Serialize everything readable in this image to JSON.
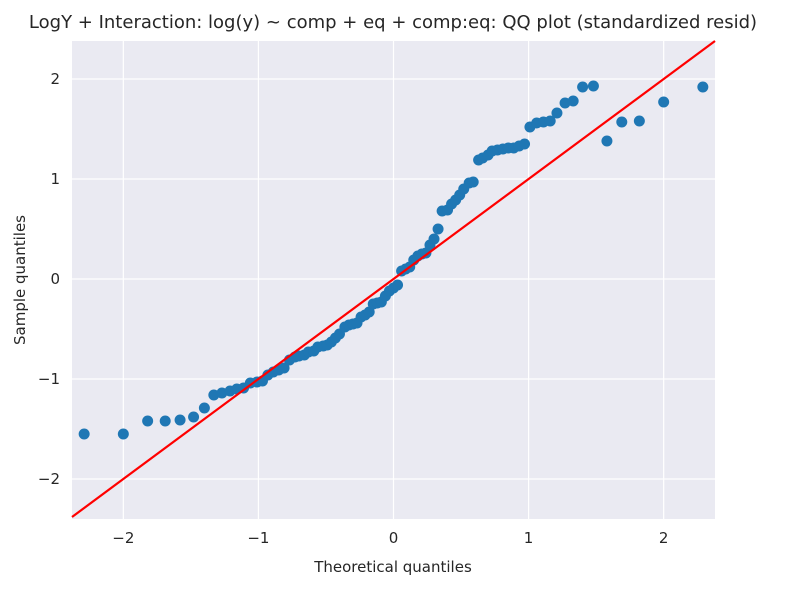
{
  "chart_data": {
    "type": "scatter",
    "title": "LogY + Interaction: log(y) ~ comp + eq + comp:eq: QQ plot (standardized resid)",
    "xlabel": "Theoretical quantiles",
    "ylabel": "Sample quantiles",
    "xlim": [
      -2.38,
      2.38
    ],
    "ylim": [
      -2.4,
      2.38
    ],
    "xticks": [
      -2,
      -1,
      0,
      1,
      2
    ],
    "yticks": [
      -2,
      -1,
      0,
      1,
      2
    ],
    "xtick_labels": [
      "−2",
      "−1",
      "0",
      "1",
      "2"
    ],
    "ytick_labels": [
      "−2",
      "−1",
      "0",
      "1",
      "2"
    ],
    "grid": true,
    "background": "#eaeaf2",
    "point_color": "#1f77b4",
    "line_color": "#ff0000",
    "reference_line": {
      "slope": 1,
      "intercept": 0
    },
    "points": {
      "x": [
        -2.29,
        -2.0,
        -1.82,
        -1.69,
        -1.58,
        -1.48,
        -1.4,
        -1.33,
        -1.27,
        -1.21,
        -1.16,
        -1.11,
        -1.06,
        -1.01,
        -0.97,
        -0.93,
        -0.89,
        -0.85,
        -0.81,
        -0.77,
        -0.73,
        -0.7,
        -0.66,
        -0.63,
        -0.59,
        -0.56,
        -0.52,
        -0.49,
        -0.46,
        -0.43,
        -0.4,
        -0.36,
        -0.33,
        -0.3,
        -0.27,
        -0.24,
        -0.21,
        -0.18,
        -0.15,
        -0.12,
        -0.09,
        -0.06,
        -0.03,
        0.0,
        0.03,
        0.06,
        0.09,
        0.12,
        0.15,
        0.18,
        0.21,
        0.24,
        0.27,
        0.3,
        0.33,
        0.36,
        0.4,
        0.43,
        0.46,
        0.49,
        0.52,
        0.56,
        0.59,
        0.63,
        0.66,
        0.7,
        0.73,
        0.77,
        0.81,
        0.85,
        0.89,
        0.93,
        0.97,
        1.01,
        1.06,
        1.11,
        1.16,
        1.21,
        1.27,
        1.33,
        1.4,
        1.48,
        1.58,
        1.69,
        1.82,
        2.0,
        2.29
      ],
      "y": [
        -1.55,
        -1.55,
        -1.42,
        -1.42,
        -1.41,
        -1.38,
        -1.29,
        -1.16,
        -1.14,
        -1.12,
        -1.1,
        -1.09,
        -1.04,
        -1.03,
        -1.02,
        -0.96,
        -0.93,
        -0.91,
        -0.89,
        -0.81,
        -0.78,
        -0.77,
        -0.76,
        -0.73,
        -0.72,
        -0.68,
        -0.67,
        -0.66,
        -0.63,
        -0.59,
        -0.55,
        -0.48,
        -0.46,
        -0.45,
        -0.44,
        -0.38,
        -0.36,
        -0.33,
        -0.25,
        -0.24,
        -0.23,
        -0.17,
        -0.12,
        -0.09,
        -0.06,
        0.08,
        0.1,
        0.12,
        0.19,
        0.23,
        0.25,
        0.26,
        0.34,
        0.4,
        0.5,
        0.68,
        0.69,
        0.75,
        0.79,
        0.84,
        0.9,
        0.96,
        0.97,
        1.19,
        1.21,
        1.24,
        1.28,
        1.29,
        1.3,
        1.31,
        1.31,
        1.33,
        1.35,
        1.52,
        1.56,
        1.57,
        1.58,
        1.66,
        1.76,
        1.78,
        1.92,
        1.93,
        1.38,
        1.57,
        1.58,
        1.77,
        1.92
      ]
    }
  }
}
